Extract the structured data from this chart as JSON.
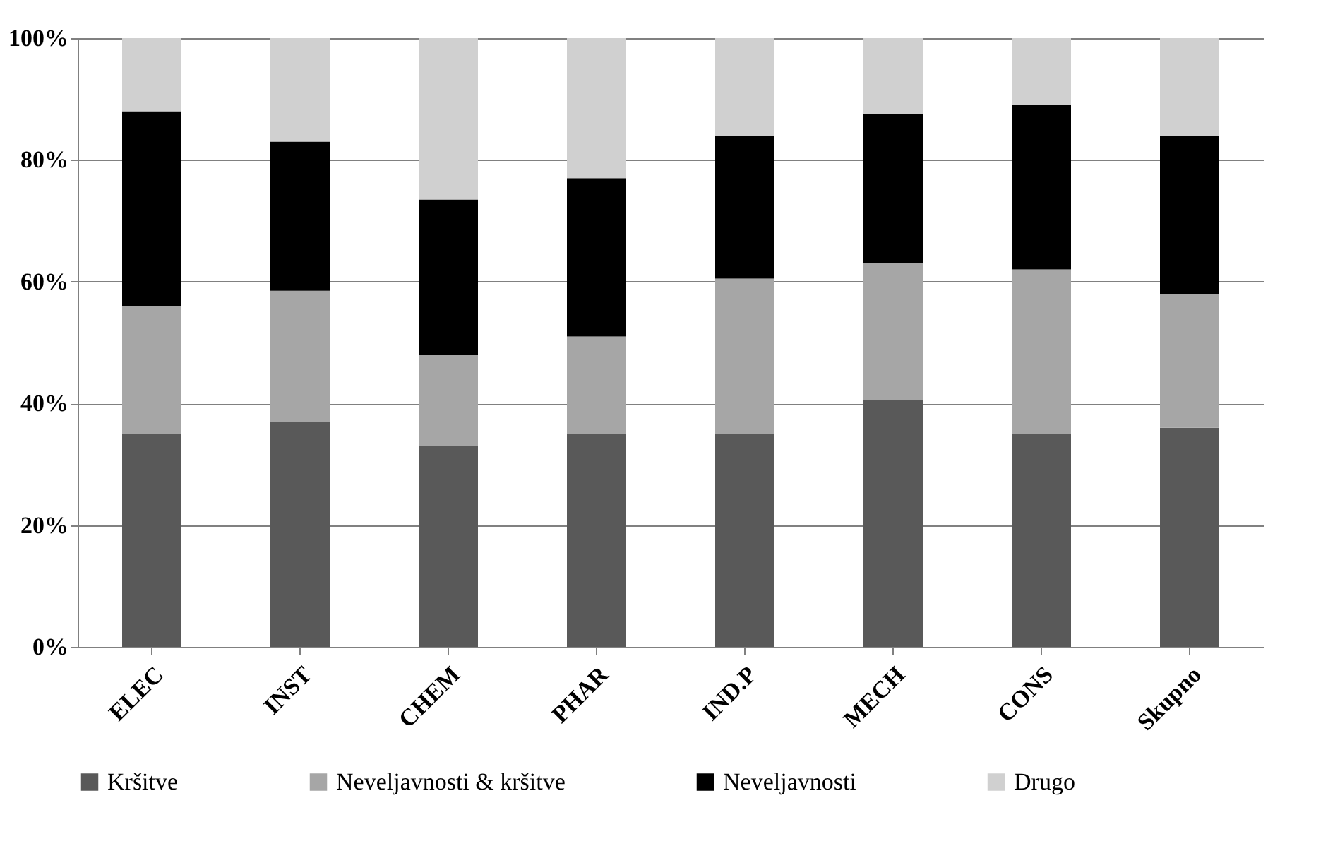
{
  "chart_data": {
    "type": "bar",
    "stacked": true,
    "categories": [
      "ELEC",
      "INST",
      "CHEM",
      "PHAR",
      "IND.P",
      "MECH",
      "CONS",
      "Skupno"
    ],
    "series": [
      {
        "name": "Kršitve",
        "color": "#595959",
        "values": [
          35,
          37,
          33,
          35,
          35,
          40.5,
          35,
          36
        ]
      },
      {
        "name": "Neveljavnosti & kršitve",
        "color": "#a6a6a6",
        "values": [
          21,
          21.5,
          15,
          16,
          25.5,
          22.5,
          27,
          22
        ]
      },
      {
        "name": "Neveljavnosti",
        "color": "#000000",
        "values": [
          32,
          24.5,
          25.5,
          26,
          23.5,
          24.5,
          27,
          26
        ]
      },
      {
        "name": "Drugo",
        "color": "#d0d0d0",
        "values": [
          12,
          17,
          26.5,
          23,
          16,
          12.5,
          11,
          16
        ]
      }
    ],
    "ylim": [
      0,
      100
    ],
    "yticks": [
      {
        "value": 0,
        "label": "0%"
      },
      {
        "value": 20,
        "label": "20%"
      },
      {
        "value": 40,
        "label": "40%"
      },
      {
        "value": 60,
        "label": "60%"
      },
      {
        "value": 80,
        "label": "80%"
      },
      {
        "value": 100,
        "label": "100%"
      }
    ],
    "grid": "y",
    "legend": "bottom"
  }
}
